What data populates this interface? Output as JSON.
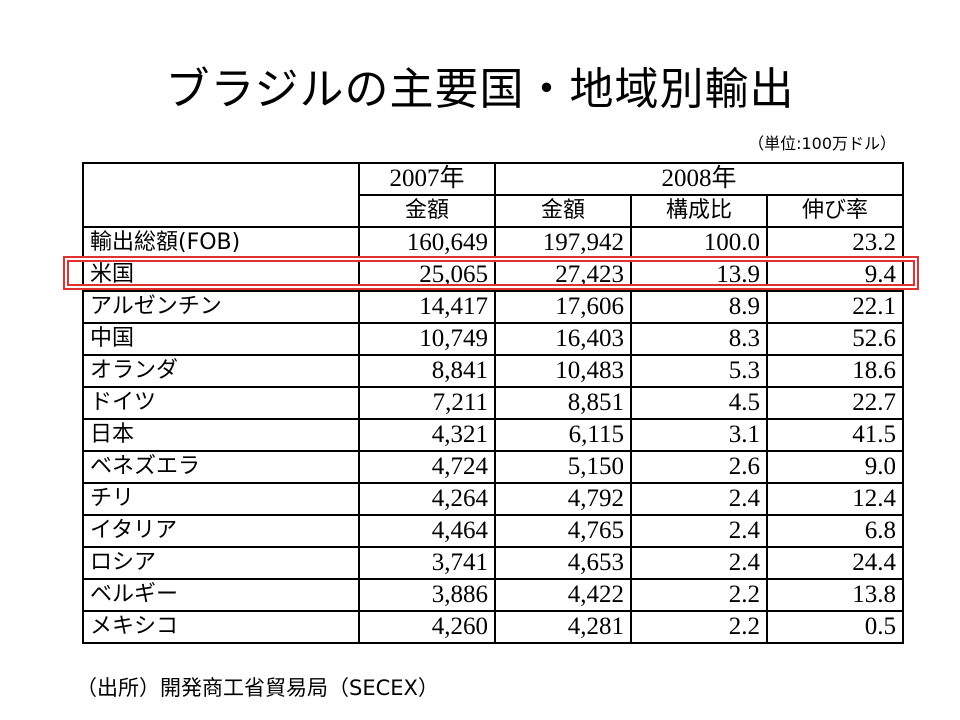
{
  "title": "ブラジルの主要国・地域別輸出",
  "unit": "（単位:100万ドル）",
  "colors": {
    "highlight": "#e03131",
    "border": "#000000"
  },
  "header": {
    "year1": "2007年",
    "year2": "2008年",
    "cols": [
      "金額",
      "金額",
      "構成比",
      "伸び率"
    ]
  },
  "rows": [
    {
      "label": "輸出総額(FOB)",
      "v2007": "160,649",
      "v2008": "197,942",
      "share": "100.0",
      "growth": "23.2"
    },
    {
      "label": "米国",
      "v2007": "25,065",
      "v2008": "27,423",
      "share": "13.9",
      "growth": "9.4"
    },
    {
      "label": "アルゼンチン",
      "v2007": "14,417",
      "v2008": "17,606",
      "share": "8.9",
      "growth": "22.1"
    },
    {
      "label": "中国",
      "v2007": "10,749",
      "v2008": "16,403",
      "share": "8.3",
      "growth": "52.6"
    },
    {
      "label": "オランダ",
      "v2007": "8,841",
      "v2008": "10,483",
      "share": "5.3",
      "growth": "18.6"
    },
    {
      "label": "ドイツ",
      "v2007": "7,211",
      "v2008": "8,851",
      "share": "4.5",
      "growth": "22.7"
    },
    {
      "label": "日本",
      "v2007": "4,321",
      "v2008": "6,115",
      "share": "3.1",
      "growth": "41.5"
    },
    {
      "label": "ベネズエラ",
      "v2007": "4,724",
      "v2008": "5,150",
      "share": "2.6",
      "growth": "9.0"
    },
    {
      "label": "チリ",
      "v2007": "4,264",
      "v2008": "4,792",
      "share": "2.4",
      "growth": "12.4"
    },
    {
      "label": "イタリア",
      "v2007": "4,464",
      "v2008": "4,765",
      "share": "2.4",
      "growth": "6.8"
    },
    {
      "label": "ロシア",
      "v2007": "3,741",
      "v2008": "4,653",
      "share": "2.4",
      "growth": "24.4"
    },
    {
      "label": "ベルギー",
      "v2007": "3,886",
      "v2008": "4,422",
      "share": "2.2",
      "growth": "13.8"
    },
    {
      "label": "メキシコ",
      "v2007": "4,260",
      "v2008": "4,281",
      "share": "2.2",
      "growth": "0.5"
    }
  ],
  "source": "（出所）開発商工省貿易局（SECEX）"
}
